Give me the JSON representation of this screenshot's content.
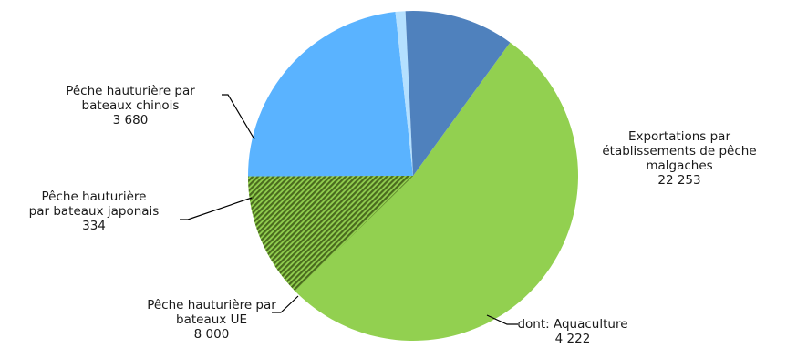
{
  "chart_data": {
    "type": "pie",
    "title": "",
    "slices": [
      {
        "key": "exports",
        "lines": [
          "Exportations par",
          "établissements de pêche",
          "malgaches",
          "22 253"
        ],
        "value": 22253,
        "color": "#92d050"
      },
      {
        "key": "ue",
        "lines": [
          "Pêche hauturière par",
          "bateaux UE",
          "8 000"
        ],
        "value": 8000,
        "color": "#5ab3ff"
      },
      {
        "key": "japan",
        "lines": [
          "Pêche hauturière",
          "par bateaux japonais",
          "334"
        ],
        "value": 334,
        "color": "#b4e0ff"
      },
      {
        "key": "china",
        "lines": [
          "Pêche hauturière par",
          "bateaux chinois",
          "3 680"
        ],
        "value": 3680,
        "color": "#4f81bd"
      }
    ],
    "subset": {
      "parent": "exports",
      "lines": [
        "dont: Aquaculture",
        "4 222"
      ],
      "value": 4222,
      "pattern": "hatched",
      "color": "#4a6b1e"
    }
  }
}
